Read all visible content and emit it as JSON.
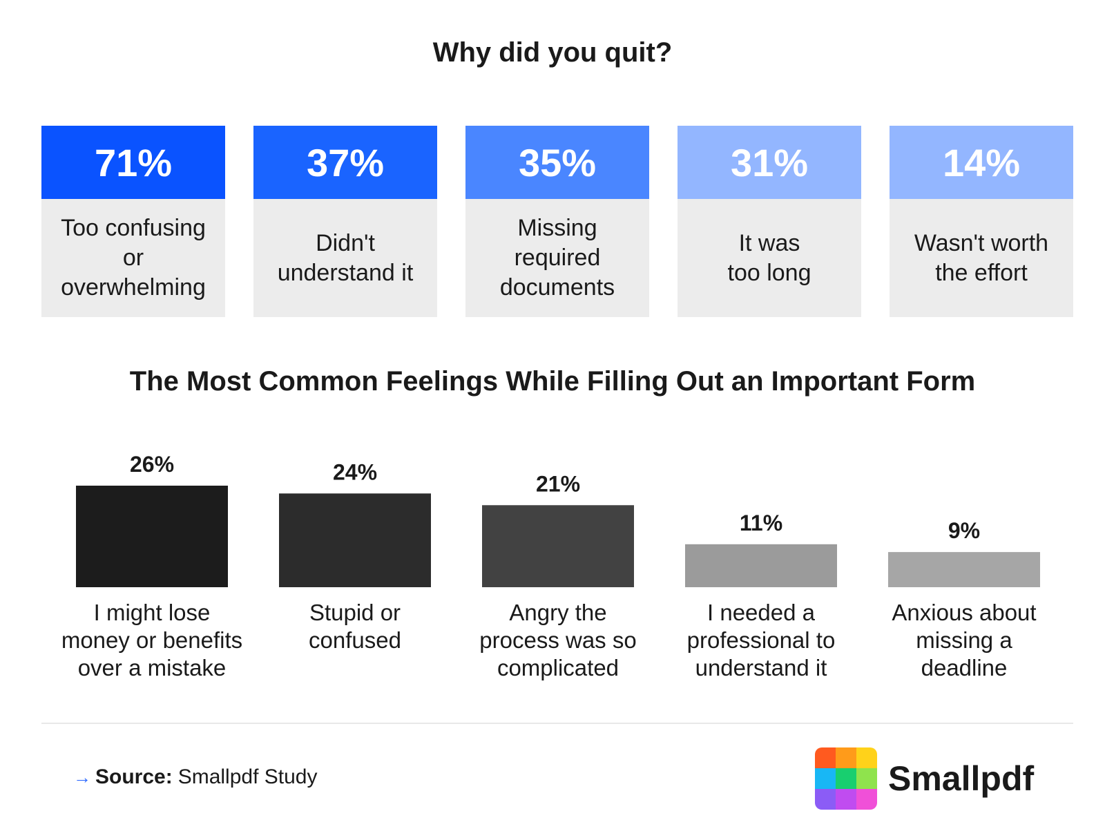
{
  "quit_section": {
    "title": "Why did you quit?",
    "cards": [
      {
        "percent": "71%",
        "label": "Too confusing\nor\noverwhelming",
        "color": "#0a53ff"
      },
      {
        "percent": "37%",
        "label": "Didn't\nunderstand it",
        "color": "#1a64ff"
      },
      {
        "percent": "35%",
        "label": "Missing\nrequired\ndocuments",
        "color": "#4a86ff"
      },
      {
        "percent": "31%",
        "label": "It was\ntoo long",
        "color": "#93b6ff"
      },
      {
        "percent": "14%",
        "label": "Wasn't worth\nthe effort",
        "color": "#93b6ff"
      }
    ]
  },
  "chart_data": {
    "type": "bar",
    "title": "The Most Common Feelings While Filling Out an Important Form",
    "categories": [
      "I might lose\nmoney or benefits\nover a mistake",
      "Stupid or\nconfused",
      "Angry the\nprocess was so\ncomplicated",
      "I needed a\nprofessional to\nunderstand it",
      "Anxious about\nmissing a\ndeadline"
    ],
    "values": [
      26,
      24,
      21,
      11,
      9
    ],
    "value_labels": [
      "26%",
      "24%",
      "21%",
      "11%",
      "9%"
    ],
    "colors": [
      "#1c1c1c",
      "#2c2c2c",
      "#424242",
      "#9b9b9b",
      "#a6a6a6"
    ],
    "ylim": [
      0,
      26
    ],
    "grid": false
  },
  "footer": {
    "source_key": "Source:",
    "source_value": "Smallpdf Study",
    "brand": "Smallpdf",
    "logo_colors": [
      "#ff5a1f",
      "#ff9b1a",
      "#ffd21a",
      "#18b7f5",
      "#18cf6f",
      "#8fe34d",
      "#8b5cf6",
      "#c04cf0",
      "#f050d8"
    ]
  }
}
